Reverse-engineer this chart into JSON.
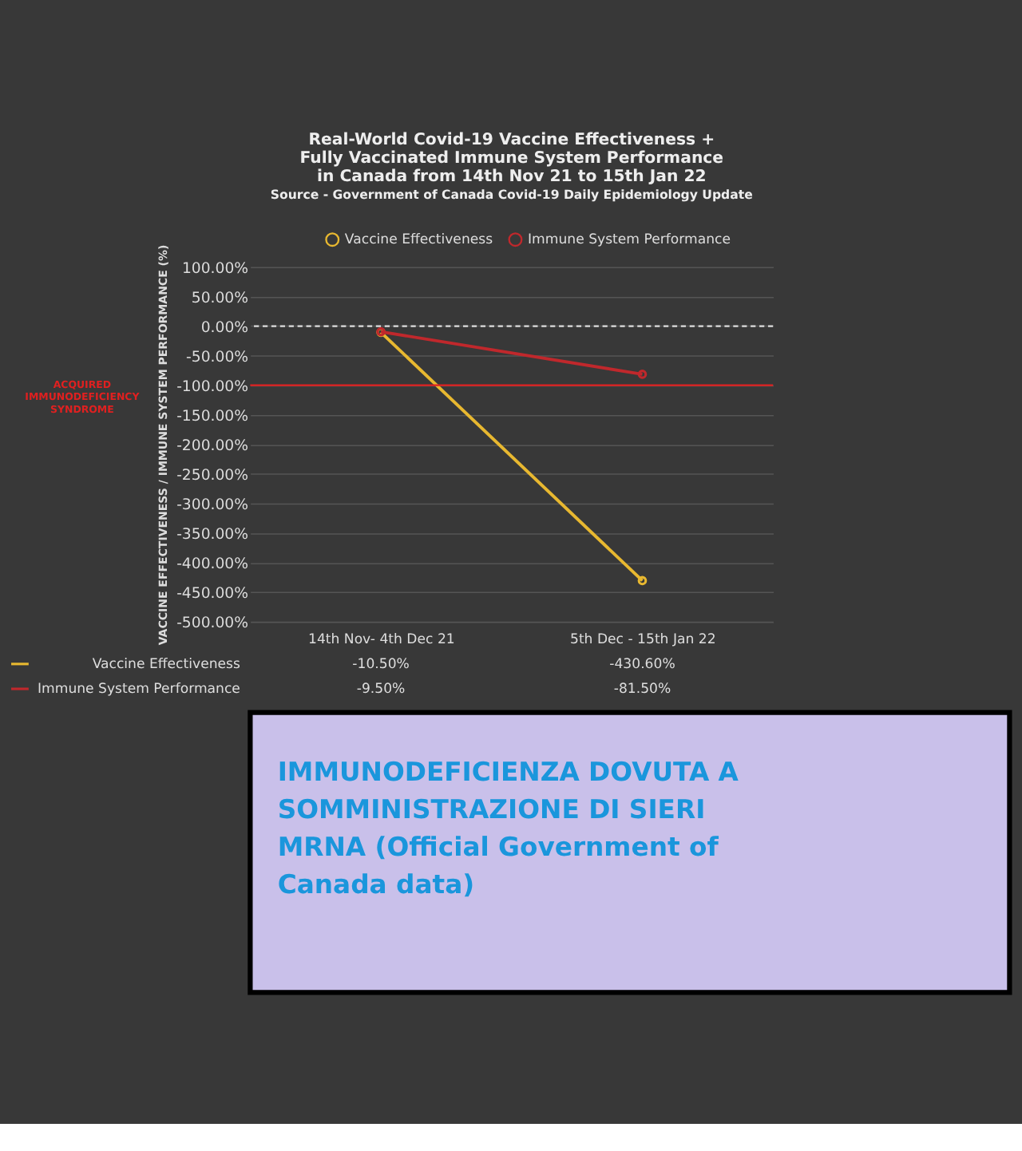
{
  "chart_data": [
    {
      "type": "line",
      "title": "Real-World Covid-19 Vaccine Effectiveness + Fully Vaccinated Immune System Performance in Canada from 14th Nov 21 to 15th Jan 22",
      "subtitle": "Source - Government of Canada Covid-19 Daily Epidemiology Update",
      "ylabel": "VACCINE EFFECTIVENESS / IMMUNE SYSTEM PERFORMANCE (%)",
      "categories": [
        "14th Nov-  4th Dec 21",
        "5th Dec - 15th Jan 22"
      ],
      "series": [
        {
          "name": "Vaccine Effectiveness",
          "color": "#e8b830",
          "values": [
            -10.5,
            -430.6
          ],
          "value_labels": [
            "-10.50%",
            "-430.60%"
          ]
        },
        {
          "name": "Immune System Performance",
          "color": "#c0282c",
          "values": [
            -9.5,
            -81.5
          ],
          "value_labels": [
            "-9.50%",
            "-81.50%"
          ]
        }
      ],
      "ylim": [
        -500,
        100
      ],
      "yticks": [
        {
          "value": 100,
          "label": "100.00%"
        },
        {
          "value": 50,
          "label": "50.00%"
        },
        {
          "value": 0,
          "label": "0.00%"
        },
        {
          "value": -50,
          "label": "-50.00%"
        },
        {
          "value": -100,
          "label": "-100.00%"
        },
        {
          "value": -150,
          "label": "-150.00%"
        },
        {
          "value": -200,
          "label": "-200.00%"
        },
        {
          "value": -250,
          "label": "-250.00%"
        },
        {
          "value": -300,
          "label": "-300.00%"
        },
        {
          "value": -350,
          "label": "-350.00%"
        },
        {
          "value": -400,
          "label": "-400.00%"
        },
        {
          "value": -450,
          "label": "-450.00%"
        },
        {
          "value": -500,
          "label": "-500.00%"
        }
      ],
      "ref_lines": [
        {
          "axis": "y",
          "value": 0,
          "color": "#dddddd",
          "line_style": "dashed"
        },
        {
          "axis": "y",
          "value": -100,
          "color": "#e02020",
          "line_style": "solid",
          "label": "ACQUIRED IMMUNODEFICIENCY SYNDROME"
        }
      ],
      "legend": "top",
      "grid": "y",
      "marker": "circle",
      "line_style": "solid"
    },
    {
      "type": "other",
      "annotations": [
        "IMMUNODEFICIENZA DOVUTA A SOMMINISTRAZIONE DI SIERI MRNA (Official Government of Canada data)"
      ]
    }
  ]
}
